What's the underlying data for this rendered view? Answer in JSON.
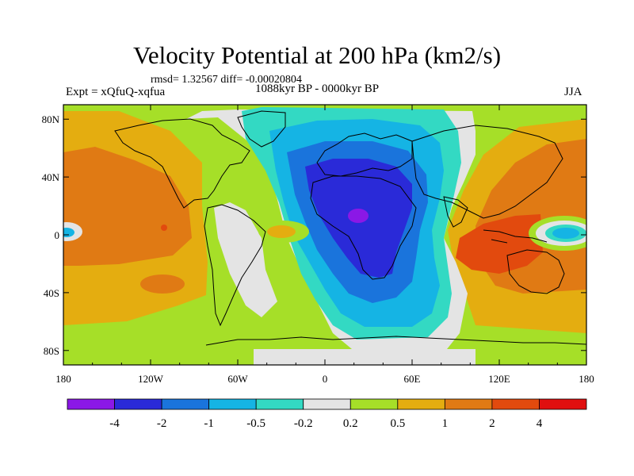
{
  "header": {
    "title": "Velocity Potential at 200 hPa (km2/s)",
    "stats": "rmsd= 1.32567 diff= -0.00020804",
    "left_label": "Expt = xQfuQ-xqfua",
    "center_label": "1088kyr BP - 0000kyr BP",
    "right_label": "JJA"
  },
  "axes": {
    "x_ticks": [
      "180",
      "120W",
      "60W",
      "0",
      "60E",
      "120E",
      "180"
    ],
    "y_ticks": [
      "80N",
      "40N",
      "0",
      "40S",
      "80S"
    ]
  },
  "colorbar": {
    "labels": [
      "-4",
      "-2",
      "-1",
      "-0.5",
      "-0.2",
      "0.2",
      "0.5",
      "1",
      "2",
      "4"
    ],
    "colors": [
      "#8b18e6",
      "#2a2ad8",
      "#1a74dc",
      "#15b4e4",
      "#33d9c3",
      "#e4e4e4",
      "#a6df28",
      "#e4ad10",
      "#e07a14",
      "#e24a0e",
      "#e00f0f"
    ]
  },
  "map_colors": {
    "purple": "#8b18e6",
    "dark_blue": "#2a2ad8",
    "blue": "#1a74dc",
    "cyan": "#15b4e4",
    "teal": "#33d9c3",
    "grey": "#e4e4e4",
    "yellow_green": "#a6df28",
    "orange_yellow": "#e4ad10",
    "orange": "#e07a14",
    "red_orange": "#e24a0e"
  }
}
